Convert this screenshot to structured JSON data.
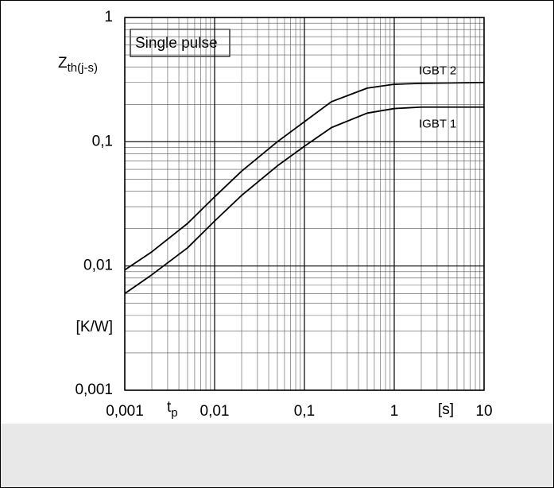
{
  "chart_data": {
    "type": "line",
    "log_x": true,
    "log_y": true,
    "grid": true,
    "minor_grid": true,
    "annotation": "Single pulse",
    "ylabel": "Z",
    "ylabel_sub": "th(j-s)",
    "yunit": "[K/W]",
    "xlabel": "t",
    "xlabel_sub": "p",
    "xunit": "[s]",
    "xlim": [
      0.001,
      10
    ],
    "ylim": [
      0.001,
      1
    ],
    "xticks": [
      {
        "value": 0.001,
        "label": "0,001"
      },
      {
        "value": 0.01,
        "label": "0,01"
      },
      {
        "value": 0.1,
        "label": "0,1"
      },
      1,
      10
    ],
    "yticks": [
      {
        "value": 0.001,
        "label": "0,001"
      },
      {
        "value": 0.01,
        "label": "0,01"
      },
      {
        "value": 0.1,
        "label": "0,1"
      },
      1
    ],
    "x": [
      0.001,
      0.002,
      0.005,
      0.01,
      0.02,
      0.05,
      0.1,
      0.2,
      0.5,
      1,
      2,
      10
    ],
    "series": [
      {
        "name": "IGBT 2",
        "color": "#000000",
        "values": [
          0.0093,
          0.013,
          0.022,
          0.036,
          0.058,
          0.1,
          0.145,
          0.21,
          0.27,
          0.29,
          0.295,
          0.3
        ]
      },
      {
        "name": "IGBT 1",
        "color": "#000000",
        "values": [
          0.006,
          0.0085,
          0.014,
          0.023,
          0.037,
          0.064,
          0.092,
          0.13,
          0.17,
          0.185,
          0.19,
          0.19
        ]
      }
    ]
  }
}
